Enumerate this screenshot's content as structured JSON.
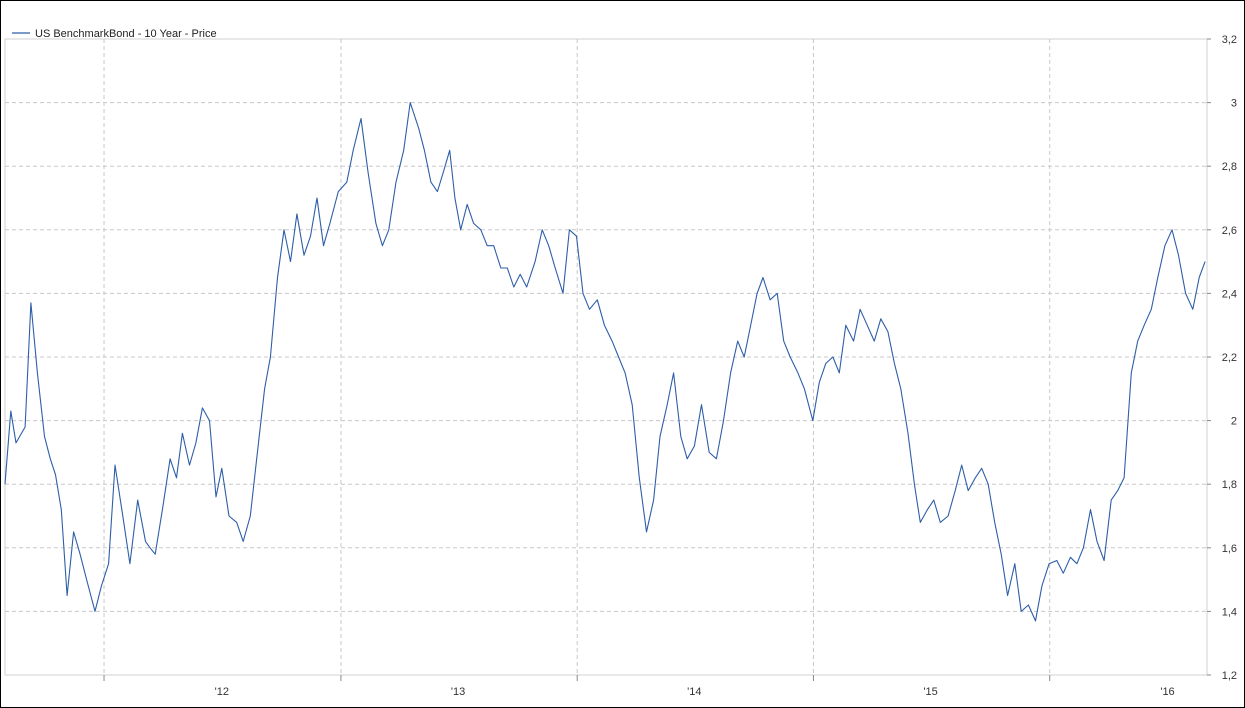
{
  "chart_data": {
    "type": "line",
    "title": "",
    "xlabel": "",
    "ylabel": "",
    "legend": {
      "position": "top-left",
      "entries": [
        "US BenchmarkBond - 10 Year - Price"
      ]
    },
    "grid": true,
    "ylim": [
      1.2,
      3.2
    ],
    "y_ticks": [
      1.2,
      1.4,
      1.6,
      1.8,
      2.0,
      2.2,
      2.4,
      2.6,
      2.8,
      3.0,
      3.2
    ],
    "y_tick_labels": [
      "1,2",
      "1,4",
      "1,6",
      "1,8",
      "2",
      "2,2",
      "2,4",
      "2,6",
      "2,8",
      "3",
      "3,2"
    ],
    "xlim": [
      "2011-08-01",
      "2016-08-31"
    ],
    "x_tick_labels": [
      "'12",
      "'13",
      "'14",
      "'15",
      "'16"
    ],
    "x_year_boundaries": [
      "2012-01-01",
      "2013-01-01",
      "2014-01-01",
      "2015-01-01",
      "2016-01-01"
    ],
    "x_label_positions": [
      "2012-07-01",
      "2013-07-01",
      "2014-07-01",
      "2015-07-01",
      "2016-07-01"
    ],
    "colors": {
      "line": "#2e5ea8",
      "grid": "#c8c8c8"
    },
    "series": [
      {
        "name": "US BenchmarkBond - 10 Year - Price",
        "x": [
          "2011-08-01",
          "2011-08-10",
          "2011-08-18",
          "2011-09-01",
          "2011-09-10",
          "2011-09-20",
          "2011-10-01",
          "2011-10-10",
          "2011-10-18",
          "2011-10-27",
          "2011-11-05",
          "2011-11-15",
          "2011-11-25",
          "2011-12-05",
          "2011-12-18",
          "2011-12-28",
          "2012-01-08",
          "2012-01-18",
          "2012-01-30",
          "2012-02-10",
          "2012-02-22",
          "2012-03-05",
          "2012-03-12",
          "2012-03-20",
          "2012-04-01",
          "2012-04-12",
          "2012-04-22",
          "2012-05-01",
          "2012-05-12",
          "2012-05-22",
          "2012-06-01",
          "2012-06-12",
          "2012-06-22",
          "2012-07-01",
          "2012-07-12",
          "2012-07-24",
          "2012-08-03",
          "2012-08-14",
          "2012-08-25",
          "2012-09-05",
          "2012-09-14",
          "2012-09-25",
          "2012-10-05",
          "2012-10-15",
          "2012-10-25",
          "2012-11-05",
          "2012-11-15",
          "2012-11-25",
          "2012-12-05",
          "2012-12-15",
          "2012-12-28",
          "2013-01-10",
          "2013-01-20",
          "2013-02-01",
          "2013-02-12",
          "2013-02-24",
          "2013-03-06",
          "2013-03-16",
          "2013-03-27",
          "2013-04-08",
          "2013-04-18",
          "2013-05-01",
          "2013-05-10",
          "2013-05-20",
          "2013-05-30",
          "2013-06-08",
          "2013-06-18",
          "2013-06-26",
          "2013-07-05",
          "2013-07-15",
          "2013-07-25",
          "2013-08-05",
          "2013-08-15",
          "2013-08-25",
          "2013-09-05",
          "2013-09-15",
          "2013-09-25",
          "2013-10-05",
          "2013-10-15",
          "2013-10-28",
          "2013-11-08",
          "2013-11-18",
          "2013-11-28",
          "2013-12-10",
          "2013-12-20",
          "2013-12-31",
          "2014-01-10",
          "2014-01-20",
          "2014-02-01",
          "2014-02-12",
          "2014-02-24",
          "2014-03-06",
          "2014-03-16",
          "2014-03-27",
          "2014-04-07",
          "2014-04-18",
          "2014-04-29",
          "2014-05-09",
          "2014-05-20",
          "2014-05-30",
          "2014-06-10",
          "2014-06-20",
          "2014-07-01",
          "2014-07-12",
          "2014-07-24",
          "2014-08-04",
          "2014-08-15",
          "2014-08-26",
          "2014-09-06",
          "2014-09-16",
          "2014-09-26",
          "2014-10-06",
          "2014-10-15",
          "2014-10-26",
          "2014-11-06",
          "2014-11-16",
          "2014-11-26",
          "2014-12-08",
          "2014-12-18",
          "2014-12-31",
          "2015-01-10",
          "2015-01-20",
          "2015-01-31",
          "2015-02-10",
          "2015-02-20",
          "2015-03-04",
          "2015-03-14",
          "2015-03-25",
          "2015-04-05",
          "2015-04-15",
          "2015-04-26",
          "2015-05-06",
          "2015-05-16",
          "2015-05-27",
          "2015-06-06",
          "2015-06-15",
          "2015-06-26",
          "2015-07-06",
          "2015-07-16",
          "2015-07-28",
          "2015-08-08",
          "2015-08-18",
          "2015-08-28",
          "2015-09-08",
          "2015-09-18",
          "2015-09-28",
          "2015-10-08",
          "2015-10-18",
          "2015-10-28",
          "2015-11-08",
          "2015-11-18",
          "2015-11-29",
          "2015-12-10",
          "2015-12-20",
          "2015-12-31",
          "2016-01-12",
          "2016-01-22",
          "2016-02-02",
          "2016-02-12",
          "2016-02-22",
          "2016-03-04",
          "2016-03-14",
          "2016-03-25",
          "2016-04-05",
          "2016-04-15",
          "2016-04-25",
          "2016-05-06",
          "2016-05-16",
          "2016-05-26",
          "2016-06-06",
          "2016-06-16",
          "2016-06-27",
          "2016-07-08",
          "2016-07-18",
          "2016-07-29",
          "2016-08-09",
          "2016-08-19",
          "2016-08-28"
        ],
        "values": [
          1.8,
          2.03,
          1.93,
          1.98,
          2.37,
          2.15,
          1.95,
          1.88,
          1.83,
          1.72,
          1.45,
          1.65,
          1.58,
          1.5,
          1.4,
          1.48,
          1.55,
          1.86,
          1.7,
          1.55,
          1.75,
          1.62,
          1.6,
          1.58,
          1.73,
          1.88,
          1.82,
          1.96,
          1.86,
          1.93,
          2.04,
          2.0,
          1.76,
          1.85,
          1.7,
          1.68,
          1.62,
          1.7,
          1.9,
          2.1,
          2.2,
          2.45,
          2.6,
          2.5,
          2.65,
          2.52,
          2.58,
          2.7,
          2.55,
          2.62,
          2.72,
          2.75,
          2.85,
          2.95,
          2.78,
          2.62,
          2.55,
          2.6,
          2.75,
          2.85,
          3.0,
          2.92,
          2.85,
          2.75,
          2.72,
          2.78,
          2.85,
          2.7,
          2.6,
          2.68,
          2.62,
          2.6,
          2.55,
          2.55,
          2.48,
          2.48,
          2.42,
          2.46,
          2.42,
          2.5,
          2.6,
          2.55,
          2.48,
          2.4,
          2.6,
          2.58,
          2.4,
          2.35,
          2.38,
          2.3,
          2.25,
          2.2,
          2.15,
          2.05,
          1.82,
          1.65,
          1.75,
          1.95,
          2.05,
          2.15,
          1.95,
          1.88,
          1.92,
          2.05,
          1.9,
          1.88,
          2.0,
          2.15,
          2.25,
          2.2,
          2.3,
          2.4,
          2.45,
          2.38,
          2.4,
          2.25,
          2.2,
          2.15,
          2.1,
          2.0,
          2.12,
          2.18,
          2.2,
          2.15,
          2.3,
          2.25,
          2.35,
          2.3,
          2.25,
          2.32,
          2.28,
          2.18,
          2.1,
          1.96,
          1.8,
          1.68,
          1.72,
          1.75,
          1.68,
          1.7,
          1.78,
          1.86,
          1.78,
          1.82,
          1.85,
          1.8,
          1.68,
          1.58,
          1.45,
          1.55,
          1.4,
          1.42,
          1.37,
          1.48,
          1.55,
          1.56,
          1.52,
          1.57,
          1.55,
          1.6,
          1.72,
          1.62,
          1.56,
          1.75,
          1.78,
          1.82,
          2.15,
          2.25,
          2.3,
          2.35,
          2.45,
          2.55,
          2.6,
          2.52,
          2.4,
          2.35,
          2.45,
          2.5
        ],
        "color": "#2e5ea8"
      }
    ]
  }
}
